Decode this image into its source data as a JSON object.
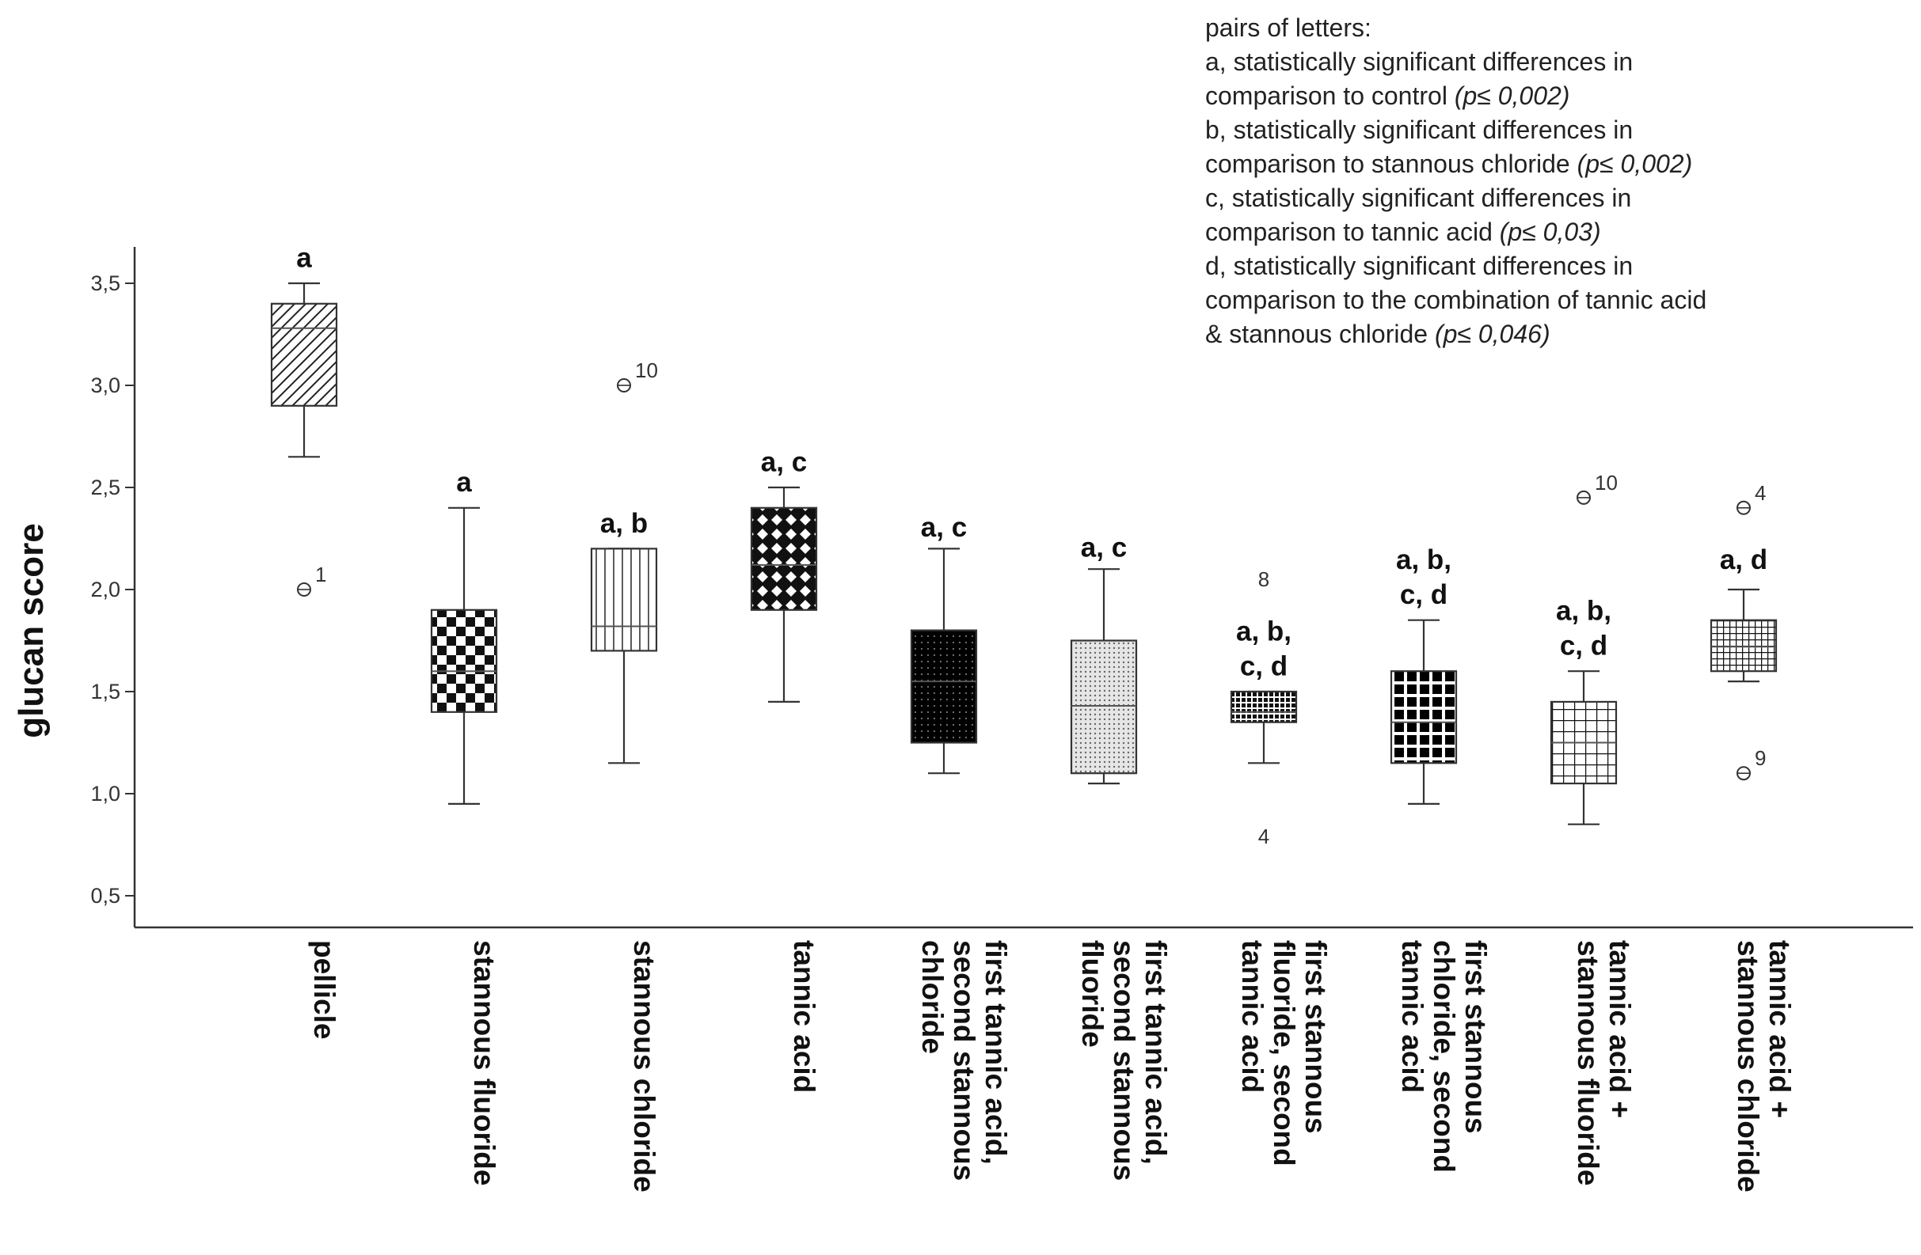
{
  "legend": {
    "heading": "pairs of letters:",
    "entries": [
      {
        "line1": "a, statistically significant differences in",
        "line2": "comparison to control",
        "p": "(p≤ 0,002)"
      },
      {
        "line1": "b, statistically significant differences in",
        "line2": "comparison to stannous chloride",
        "p": "(p≤ 0,002)"
      },
      {
        "line1": "c, statistically significant differences in",
        "line2": "comparison to tannic acid",
        "p": "(p≤ 0,03)"
      },
      {
        "line1": "d, statistically significant differences in",
        "line2": "comparison to the combination of tannic acid",
        "line3": "& stannous chloride",
        "p": "(p≤ 0,046)"
      }
    ]
  },
  "chart_data": {
    "type": "boxplot",
    "ylabel": "glucan score",
    "xlabel": "",
    "ylim": [
      0.3,
      3.65
    ],
    "yticks": [
      0.5,
      1.0,
      1.5,
      2.0,
      2.5,
      3.0,
      3.5
    ],
    "ytick_labels": [
      "0,5",
      "1,0",
      "1,5",
      "2,0",
      "2,5",
      "3,0",
      "3,5"
    ],
    "grid": false,
    "groups": [
      {
        "category": "pellicle",
        "label_lines": [
          "pellicle"
        ],
        "pattern": "diag",
        "whisker_low": 2.65,
        "q1": 2.9,
        "median": 3.28,
        "q3": 3.4,
        "whisker_high": 3.5,
        "sig_lines": [
          "a"
        ],
        "sig_value": 3.58,
        "outliers": [
          {
            "value": 2.0,
            "label": "1",
            "marker": "circle"
          }
        ]
      },
      {
        "category": "stannous fluoride",
        "label_lines": [
          "stannous fluoride"
        ],
        "pattern": "checker",
        "whisker_low": 0.95,
        "q1": 1.4,
        "median": 1.6,
        "q3": 1.9,
        "whisker_high": 2.4,
        "sig_lines": [
          "a"
        ],
        "sig_value": 2.48,
        "outliers": []
      },
      {
        "category": "stannous chloride",
        "label_lines": [
          "stannous chloride"
        ],
        "pattern": "vlines",
        "whisker_low": 1.15,
        "q1": 1.7,
        "median": 1.82,
        "q3": 2.2,
        "whisker_high": 2.2,
        "sig_lines": [
          "a, b"
        ],
        "sig_value": 2.28,
        "outliers": [
          {
            "value": 3.0,
            "label": "10",
            "marker": "circle"
          }
        ]
      },
      {
        "category": "tannic acid",
        "label_lines": [
          "tannic acid"
        ],
        "pattern": "diamond",
        "whisker_low": 1.45,
        "q1": 1.9,
        "median": 2.12,
        "q3": 2.4,
        "whisker_high": 2.5,
        "sig_lines": [
          "a, c"
        ],
        "sig_value": 2.58,
        "outliers": []
      },
      {
        "category": "first tannic acid, second stannous chloride",
        "label_lines": [
          "first tannic acid,",
          "second stannous",
          "chloride"
        ],
        "pattern": "darkdots",
        "whisker_low": 1.1,
        "q1": 1.25,
        "median": 1.55,
        "q3": 1.8,
        "whisker_high": 2.2,
        "sig_lines": [
          "a, c"
        ],
        "sig_value": 2.26,
        "outliers": []
      },
      {
        "category": "first tannic acid, second stannous fluoride",
        "label_lines": [
          "first tannic acid,",
          "second stannous",
          "fluoride"
        ],
        "pattern": "lightdots",
        "whisker_low": 1.05,
        "q1": 1.1,
        "median": 1.43,
        "q3": 1.75,
        "whisker_high": 2.1,
        "sig_lines": [
          "a, c"
        ],
        "sig_value": 2.16,
        "outliers": []
      },
      {
        "category": "first stannous fluoride, second tannic acid",
        "label_lines": [
          "first stannous",
          "fluoride, second",
          "tannic acid"
        ],
        "pattern": "smallgrid",
        "whisker_low": 1.15,
        "q1": 1.35,
        "median": 1.4,
        "q3": 1.5,
        "whisker_high": 1.5,
        "sig_lines": [
          "a, b,",
          "c, d"
        ],
        "sig_value": 1.58,
        "outliers": [
          {
            "value": 2.05,
            "label": "8",
            "marker": "none"
          },
          {
            "value": 0.79,
            "label": "4",
            "marker": "none"
          }
        ]
      },
      {
        "category": "first stannous chloride, second tannic acid",
        "label_lines": [
          "first stannous",
          "chloride, second",
          "tannic acid"
        ],
        "pattern": "bigcheck",
        "whisker_low": 0.95,
        "q1": 1.15,
        "median": 1.35,
        "q3": 1.6,
        "whisker_high": 1.85,
        "sig_lines": [
          "a, b,",
          "c, d"
        ],
        "sig_value": 1.93,
        "outliers": []
      },
      {
        "category": "tannic acid + stannous fluoride",
        "label_lines": [
          "tannic acid +",
          "stannous fluoride"
        ],
        "pattern": "whitegrid",
        "whisker_low": 0.85,
        "q1": 1.05,
        "median": 1.25,
        "q3": 1.45,
        "whisker_high": 1.6,
        "sig_lines": [
          "a, b,",
          "c, d"
        ],
        "sig_value": 1.68,
        "outliers": [
          {
            "value": 2.45,
            "label": "10",
            "marker": "circle"
          }
        ]
      },
      {
        "category": "tannic acid + stannous chloride",
        "label_lines": [
          "tannic acid +",
          "stannous chloride"
        ],
        "pattern": "densegrid",
        "whisker_low": 1.55,
        "q1": 1.6,
        "median": 1.72,
        "q3": 1.85,
        "whisker_high": 2.0,
        "sig_lines": [
          "a, d"
        ],
        "sig_value": 2.1,
        "outliers": [
          {
            "value": 2.4,
            "label": "4",
            "marker": "circle"
          },
          {
            "value": 1.1,
            "label": "9",
            "marker": "circle"
          }
        ]
      }
    ]
  }
}
